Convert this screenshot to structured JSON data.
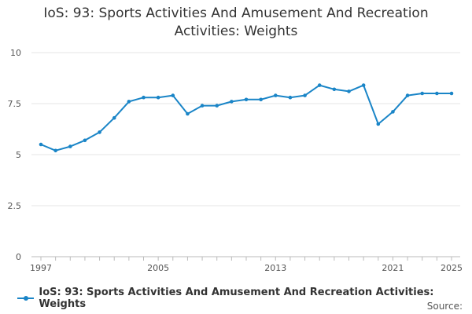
{
  "chart_data": {
    "type": "line",
    "title_line1": "IoS: 93: Sports Activities And Amusement And Recreation",
    "title_line2": "Activities: Weights",
    "x": [
      1997,
      1998,
      1999,
      2000,
      2001,
      2002,
      2003,
      2004,
      2005,
      2006,
      2007,
      2008,
      2009,
      2010,
      2011,
      2012,
      2013,
      2014,
      2015,
      2016,
      2017,
      2018,
      2019,
      2020,
      2021,
      2022,
      2023,
      2024,
      2025
    ],
    "series": [
      {
        "name": "IoS: 93: Sports Activities And Amusement And Recreation Activities: Weights",
        "values": [
          5.5,
          5.2,
          5.4,
          5.7,
          6.1,
          6.8,
          7.6,
          7.8,
          7.8,
          7.9,
          7.0,
          7.4,
          7.4,
          7.6,
          7.7,
          7.7,
          7.9,
          7.8,
          7.9,
          8.4,
          8.2,
          8.1,
          8.4,
          6.5,
          7.1,
          7.9,
          8.0,
          8.0,
          8.0
        ],
        "color": "#1a85c7"
      }
    ],
    "ylim": [
      0,
      10
    ],
    "yticks": [
      "0",
      "2.5",
      "5",
      "7.5",
      "10"
    ],
    "xtick_labels": [
      "1997",
      "2005",
      "2013",
      "2021",
      "2025"
    ],
    "grid": true,
    "legend": "bottom-left"
  },
  "footer": {
    "source_label": "Source:"
  }
}
